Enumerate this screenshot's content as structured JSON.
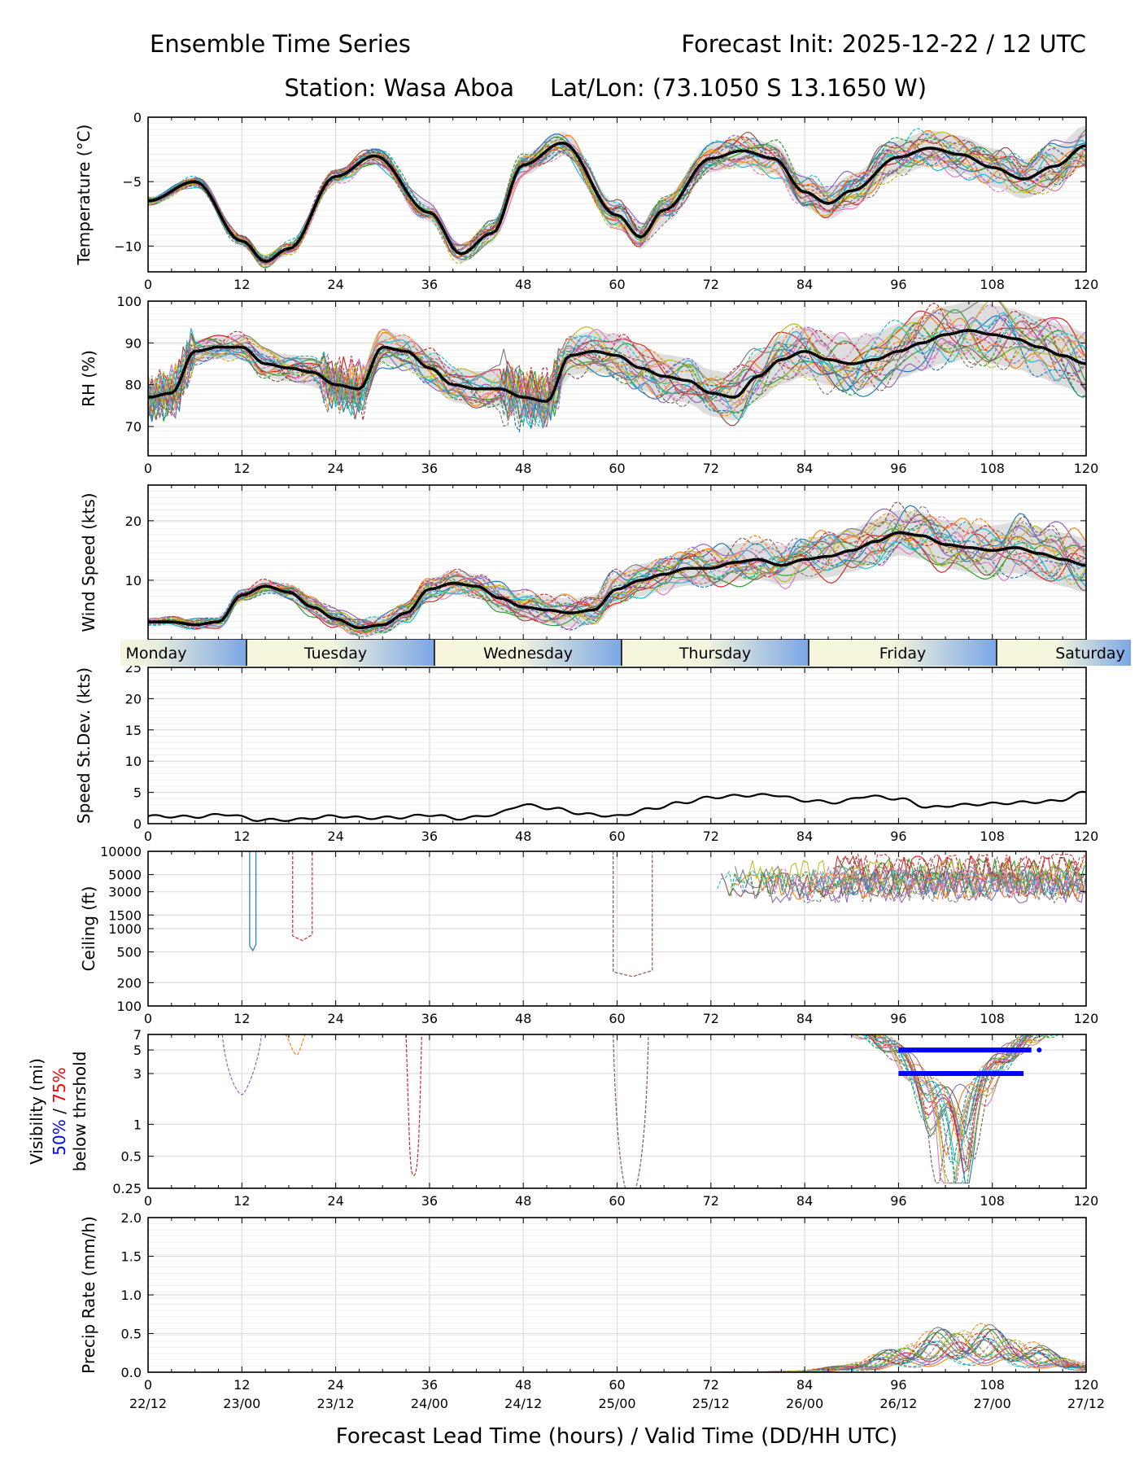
{
  "header": {
    "title_left": "Ensemble Time Series",
    "title_right": "Forecast Init: 2025-12-22 / 12 UTC",
    "station": "Station: Wasa Aboa",
    "latlon": "Lat/Lon: (73.1050 S 13.1650 W)"
  },
  "xaxis": {
    "ticks": [
      0,
      12,
      24,
      36,
      48,
      60,
      72,
      84,
      96,
      108,
      120
    ],
    "valid_times": [
      "22/12",
      "23/00",
      "23/12",
      "24/00",
      "24/12",
      "25/00",
      "25/12",
      "26/00",
      "26/12",
      "27/00",
      "27/12"
    ],
    "label": "Forecast Lead Time (hours) / Valid Time (DD/HH UTC)"
  },
  "day_band": [
    "Monday",
    "Tuesday",
    "Wednesday",
    "Thursday",
    "Friday",
    "Saturday"
  ],
  "colors": {
    "mean": "#000000",
    "spread": "#c8c8c8",
    "members": [
      "#1f77b4",
      "#ff7f0e",
      "#2ca02c",
      "#d62728",
      "#9467bd",
      "#8c564b",
      "#e377c2",
      "#7f7f7f",
      "#bcbd22",
      "#17becf"
    ],
    "band_blue": "#7aa6e6",
    "band_cream": "#f7f6dc",
    "vis_50": "#0000ff",
    "vis_75": "#ff0000"
  },
  "chart_data": [
    {
      "type": "line",
      "id": "temperature",
      "ylabel": "Temperature (°C)",
      "ylim": [
        -12,
        0
      ],
      "yticks": [
        0,
        -5,
        -10
      ],
      "ensemble_mean": {
        "x": [
          0,
          6,
          12,
          15,
          18,
          24,
          29,
          36,
          40,
          44,
          48,
          53,
          60,
          63,
          66,
          72,
          76,
          80,
          84,
          87,
          90,
          96,
          100,
          104,
          108,
          112,
          116,
          120
        ],
        "y": [
          -6.5,
          -5.0,
          -9.6,
          -11.2,
          -10.2,
          -4.6,
          -3.0,
          -7.4,
          -10.6,
          -9.0,
          -3.7,
          -2.0,
          -7.6,
          -9.3,
          -7.2,
          -3.2,
          -2.6,
          -3.2,
          -5.8,
          -6.7,
          -5.7,
          -3.1,
          -2.4,
          -2.9,
          -3.9,
          -4.8,
          -3.8,
          -2.2
        ]
      }
    },
    {
      "type": "line",
      "id": "rh",
      "ylabel": "RH (%)",
      "ylim": [
        63,
        100
      ],
      "yticks": [
        70,
        80,
        90,
        100
      ],
      "ensemble_mean": {
        "x": [
          0,
          3,
          6,
          9,
          12,
          15,
          18,
          21,
          24,
          27,
          30,
          33,
          36,
          39,
          42,
          45,
          48,
          51,
          54,
          57,
          60,
          63,
          66,
          69,
          72,
          75,
          78,
          81,
          84,
          87,
          90,
          93,
          96,
          99,
          102,
          105,
          108,
          111,
          114,
          117,
          120
        ],
        "y": [
          77,
          78,
          88,
          89,
          89,
          85,
          84,
          83,
          80,
          79,
          89,
          88,
          84,
          80,
          79,
          79,
          77,
          76,
          87,
          88,
          87,
          84,
          82,
          81,
          78,
          77,
          82,
          86,
          88,
          86,
          85,
          86,
          88,
          90,
          92,
          93,
          92,
          91,
          89,
          87,
          85
        ]
      }
    },
    {
      "type": "line",
      "id": "wind_speed",
      "ylabel": "Wind Speed (kts)",
      "ylim": [
        0,
        26
      ],
      "yticks": [
        10,
        20
      ],
      "ensemble_mean": {
        "x": [
          0,
          3,
          6,
          9,
          12,
          15,
          18,
          21,
          24,
          27,
          30,
          33,
          36,
          39,
          42,
          45,
          48,
          51,
          54,
          57,
          60,
          63,
          66,
          69,
          72,
          75,
          78,
          81,
          84,
          87,
          90,
          93,
          96,
          99,
          102,
          105,
          108,
          111,
          114,
          117,
          120
        ],
        "y": [
          3,
          3,
          2.5,
          3,
          7.5,
          9,
          8,
          5.5,
          3.5,
          2,
          2.5,
          4.5,
          8.5,
          9.5,
          9,
          7,
          5.5,
          5,
          4.5,
          5,
          8.5,
          10,
          11,
          12,
          12,
          13,
          13.5,
          12.5,
          13.5,
          14,
          15,
          16.5,
          18,
          17.5,
          16,
          15.5,
          15,
          15.5,
          14.5,
          13.5,
          12.5
        ]
      }
    },
    {
      "type": "line",
      "id": "speed_stdev",
      "ylabel": "Speed St.Dev. (kts)",
      "ylim": [
        0,
        25
      ],
      "yticks": [
        0,
        5,
        10,
        15,
        20,
        25
      ],
      "series": {
        "x": [
          0,
          6,
          10,
          14,
          18,
          24,
          28,
          32,
          36,
          40,
          44,
          48,
          52,
          56,
          60,
          64,
          68,
          72,
          76,
          80,
          84,
          88,
          92,
          96,
          100,
          104,
          108,
          112,
          116,
          120
        ],
        "y": [
          1.2,
          1.1,
          1.5,
          0.6,
          0.6,
          1.2,
          0.9,
          1.0,
          1.4,
          0.8,
          1.4,
          3.0,
          2.4,
          1.5,
          1.2,
          2.3,
          3.3,
          4.2,
          4.5,
          4.6,
          3.7,
          3.4,
          4.4,
          4.0,
          2.6,
          3.0,
          3.2,
          3.4,
          3.6,
          5.0
        ]
      }
    },
    {
      "type": "line",
      "id": "ceiling",
      "ylabel": "Ceiling (ft)",
      "yscale": "log",
      "ylim": [
        100,
        10000
      ],
      "yticks": [
        100,
        200,
        500,
        1000,
        1500,
        3000,
        5000,
        10000
      ]
    },
    {
      "type": "line",
      "id": "visibility",
      "ylabel": "Visibility (mi)",
      "ylabel_pct_50": "50%",
      "ylabel_sep": "/",
      "ylabel_pct_75": "75%",
      "ylabel_sub": "below thrshold",
      "yscale": "log",
      "ylim": [
        0.25,
        7
      ],
      "yticks": [
        0.25,
        0.5,
        1,
        3,
        5,
        7
      ],
      "threshold_50": {
        "x_start": 96,
        "x_end": 113,
        "value": 5
      },
      "threshold_75": {
        "x_start": 96,
        "x_end": 112,
        "value": 3
      }
    },
    {
      "type": "line",
      "id": "precip_rate",
      "ylabel": "Precip Rate (mm/h)",
      "ylim": [
        0,
        2
      ],
      "yticks": [
        "0.0",
        "0.5",
        "1.0",
        "1.5",
        "2.0"
      ]
    }
  ]
}
